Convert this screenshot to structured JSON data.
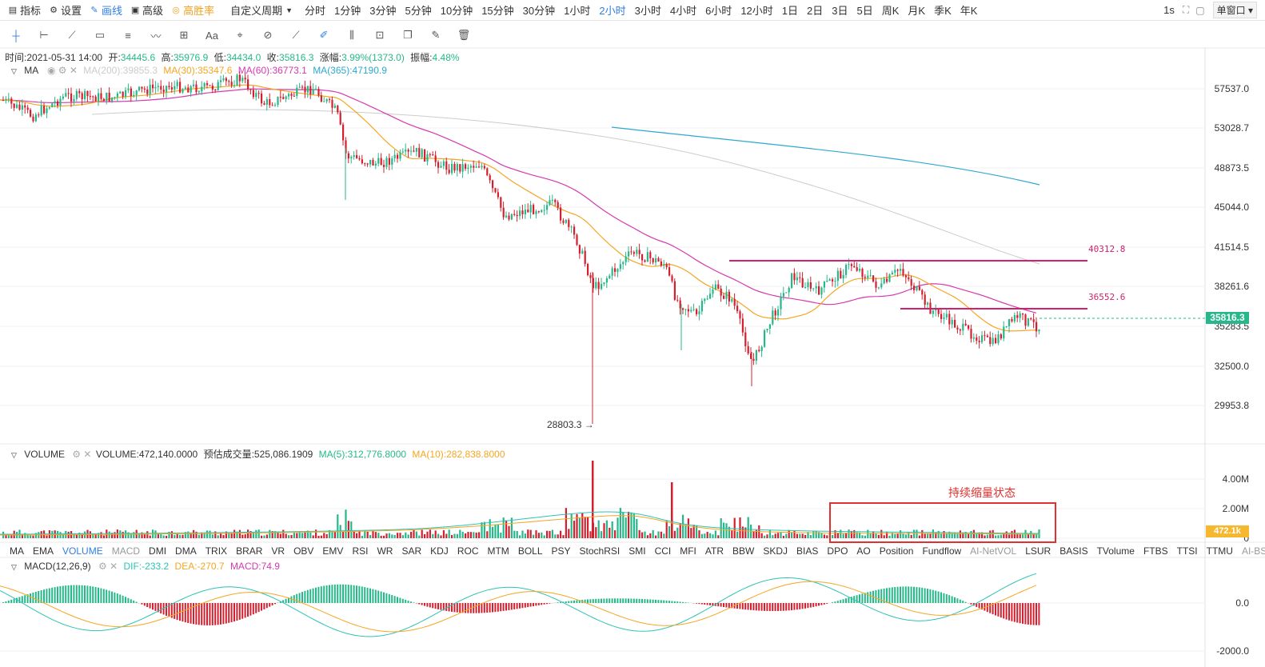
{
  "toolbar": {
    "indicators": "指标",
    "settings": "设置",
    "draw": "画线",
    "advanced": "高级",
    "win_rate": "高胜率",
    "custom_period": "自定义周期",
    "periods": [
      "分时",
      "1分钟",
      "3分钟",
      "5分钟",
      "10分钟",
      "15分钟",
      "30分钟",
      "1小时",
      "2小时",
      "3小时",
      "4小时",
      "6小时",
      "12小时",
      "1日",
      "2日",
      "3日",
      "5日",
      "周K",
      "月K",
      "季K",
      "年K"
    ],
    "active_period": "2小时",
    "refresh": "1s",
    "window_mode": "单窗口"
  },
  "info": {
    "time_label": "时间:",
    "time": "2021-05-31 14:00",
    "open_label": "开:",
    "open": "34445.6",
    "high_label": "高:",
    "high": "35976.9",
    "low_label": "低:",
    "low": "34434.0",
    "close_label": "收:",
    "close": "35816.3",
    "change_label": "涨幅:",
    "change": "3.99%(1373.0)",
    "amp_label": "振幅:",
    "amp": "4.48%"
  },
  "ma_legend": {
    "name": "MA",
    "ma200": "MA(200):39855.3",
    "ma30": "MA(30):35347.6",
    "ma60": "MA(60):36773.1",
    "ma365": "MA(365):47190.9"
  },
  "price_axis": [
    "57537.0",
    "53028.7",
    "48873.5",
    "45044.0",
    "41514.5",
    "38261.6",
    "35283.5",
    "32500.0",
    "29953.8"
  ],
  "current_price": "35816.3",
  "annotations": {
    "resistance_high": "40312.8",
    "resistance_mid": "36552.6",
    "low_marker": "28803.3 →",
    "volume_note": "持续缩量状态"
  },
  "volume_legend": {
    "name": "VOLUME",
    "value": "VOLUME:472,140.0000",
    "est": "预估成交量:525,086.1909",
    "ma5": "MA(5):312,776.8000",
    "ma10": "MA(10):282,838.8000"
  },
  "volume_axis": [
    "4.00M",
    "2.00M",
    "0"
  ],
  "current_volume": "472.1k",
  "indicator_tabs": [
    "MA",
    "EMA",
    "VOLUME",
    "MACD",
    "DMI",
    "DMA",
    "TRIX",
    "BRAR",
    "VR",
    "OBV",
    "EMV",
    "RSI",
    "WR",
    "SAR",
    "KDJ",
    "ROC",
    "MTM",
    "BOLL",
    "PSY",
    "StochRSI",
    "SMI",
    "CCI",
    "MFI",
    "ATR",
    "BBW",
    "SKDJ",
    "BIAS",
    "DPO",
    "AO",
    "Position",
    "Fundflow",
    "AI-NetVOL",
    "LSUR",
    "BASIS",
    "TVolume",
    "FTBS",
    "TTSI",
    "TTMU",
    "AI-BSI"
  ],
  "active_indicator": "VOLUME",
  "macd_legend": {
    "name": "MACD(12,26,9)",
    "dif": "DIF:-233.2",
    "dea": "DEA:-270.7",
    "macd": "MACD:74.9"
  },
  "macd_axis": [
    "0.0",
    "-2000.0"
  ],
  "colors": {
    "up": "#26b88a",
    "down": "#d4202e",
    "ma30": "#f5a623",
    "ma60": "#d63aaf",
    "ma365": "#2fa8d1",
    "ma200": "#cccccc",
    "accent": "#2f7de1",
    "resistance": "#d0206f"
  }
}
